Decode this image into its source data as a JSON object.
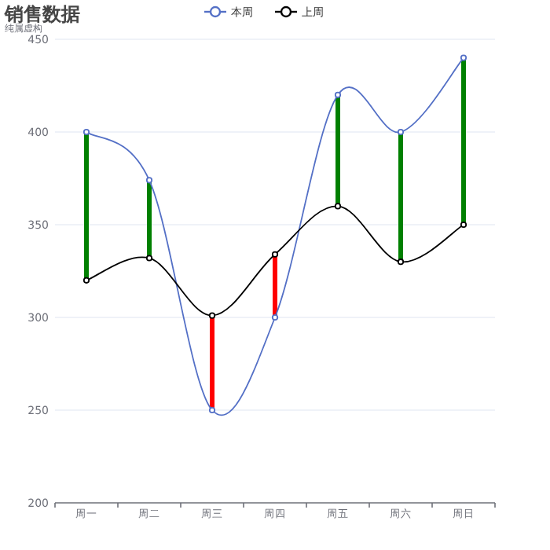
{
  "chart_data": {
    "type": "line",
    "title": "销售数据",
    "subtitle": "纯属虚构",
    "categories": [
      "周一",
      "周二",
      "周三",
      "周四",
      "周五",
      "周六",
      "周日"
    ],
    "series": [
      {
        "name": "本周",
        "color": "#5470c6",
        "values": [
          400,
          374,
          250,
          300,
          420,
          400,
          440
        ]
      },
      {
        "name": "上周",
        "color": "#000000",
        "values": [
          320,
          332,
          301,
          334,
          360,
          330,
          350
        ]
      },
      {
        "type": "bar",
        "base": [
          320,
          332,
          301,
          334,
          360,
          330,
          350
        ],
        "values": [
          80,
          42,
          -51,
          -34,
          60,
          70,
          90
        ],
        "colors": [
          "#008000",
          "#008000",
          "#ff0000",
          "#ff0000",
          "#008000",
          "#008000",
          "#008000"
        ]
      }
    ],
    "ylim": [
      200,
      450
    ],
    "yticks": [
      200,
      250,
      300,
      350,
      400,
      450
    ],
    "grid": "y",
    "legend": "top",
    "marker": "circle"
  }
}
